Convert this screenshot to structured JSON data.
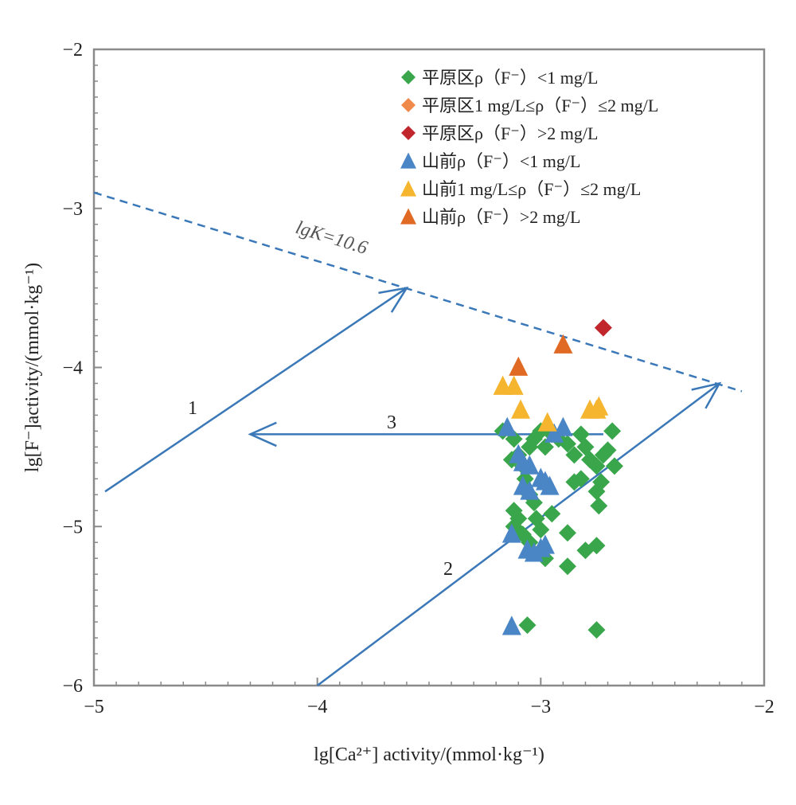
{
  "chart_data": {
    "type": "scatter",
    "xlabel": "lg[Ca²⁺] activity/(mmol·kg⁻¹)",
    "ylabel": "lg[F⁻]activity/(mmol·kg⁻¹)",
    "xlim": [
      -5,
      -2
    ],
    "ylim": [
      -6,
      -2
    ],
    "x_ticks": [
      "−5",
      "−4",
      "−3",
      "−2"
    ],
    "y_ticks": [
      "−2",
      "−3",
      "−4",
      "−5",
      "−6"
    ],
    "grid": false,
    "legend_position": "top-right",
    "series": [
      {
        "name": "平原区ρ（F⁻）<1 mg/L",
        "marker": "diamond",
        "color": "#3aa64c",
        "points": [
          [
            -3.17,
            -4.4
          ],
          [
            -3.12,
            -4.45
          ],
          [
            -3.13,
            -4.58
          ],
          [
            -3.1,
            -4.55
          ],
          [
            -3.08,
            -4.62
          ],
          [
            -3.12,
            -4.9
          ],
          [
            -3.1,
            -4.95
          ],
          [
            -3.12,
            -5.0
          ],
          [
            -3.08,
            -5.05
          ],
          [
            -3.05,
            -4.8
          ],
          [
            -3.03,
            -4.85
          ],
          [
            -3.07,
            -4.7
          ],
          [
            -3.05,
            -4.5
          ],
          [
            -3.03,
            -4.45
          ],
          [
            -3.0,
            -4.4
          ],
          [
            -2.98,
            -4.5
          ],
          [
            -2.95,
            -4.42
          ],
          [
            -2.92,
            -4.45
          ],
          [
            -2.88,
            -4.48
          ],
          [
            -2.85,
            -4.55
          ],
          [
            -2.82,
            -4.42
          ],
          [
            -2.8,
            -4.5
          ],
          [
            -2.78,
            -4.58
          ],
          [
            -2.75,
            -4.62
          ],
          [
            -2.72,
            -4.55
          ],
          [
            -2.7,
            -4.52
          ],
          [
            -2.68,
            -4.4
          ],
          [
            -2.67,
            -4.62
          ],
          [
            -2.73,
            -4.72
          ],
          [
            -2.75,
            -4.78
          ],
          [
            -2.74,
            -4.87
          ],
          [
            -2.82,
            -4.7
          ],
          [
            -2.85,
            -4.72
          ],
          [
            -2.95,
            -4.92
          ],
          [
            -3.02,
            -4.95
          ],
          [
            -3.0,
            -5.02
          ],
          [
            -3.05,
            -5.1
          ],
          [
            -3.0,
            -5.15
          ],
          [
            -2.98,
            -5.2
          ],
          [
            -2.88,
            -5.04
          ],
          [
            -2.8,
            -5.15
          ],
          [
            -2.75,
            -5.12
          ],
          [
            -2.88,
            -5.25
          ],
          [
            -3.06,
            -5.62
          ],
          [
            -2.75,
            -5.65
          ]
        ]
      },
      {
        "name": "平原区1 mg/L≤ρ（F⁻）≤2 mg/L",
        "marker": "diamond",
        "color": "#f08a4b",
        "points": []
      },
      {
        "name": "平原区ρ（F⁻）>2 mg/L",
        "marker": "diamond",
        "color": "#c0262b",
        "points": [
          [
            -2.72,
            -3.75
          ]
        ]
      },
      {
        "name": "山前ρ（F⁻）<1 mg/L",
        "marker": "triangle",
        "color": "#4a86c5",
        "points": [
          [
            -3.15,
            -4.38
          ],
          [
            -3.1,
            -4.55
          ],
          [
            -3.08,
            -4.6
          ],
          [
            -3.05,
            -4.62
          ],
          [
            -3.08,
            -4.75
          ],
          [
            -3.05,
            -4.78
          ],
          [
            -3.0,
            -4.7
          ],
          [
            -2.98,
            -4.72
          ],
          [
            -2.96,
            -4.75
          ],
          [
            -2.94,
            -4.42
          ],
          [
            -2.9,
            -4.38
          ],
          [
            -3.13,
            -5.05
          ],
          [
            -3.06,
            -5.15
          ],
          [
            -3.03,
            -5.17
          ],
          [
            -3.0,
            -5.14
          ],
          [
            -2.98,
            -5.12
          ],
          [
            -3.13,
            -5.63
          ]
        ]
      },
      {
        "name": "山前1 mg/L≤ρ（F⁻）≤2 mg/L",
        "marker": "triangle",
        "color": "#f5b52e",
        "points": [
          [
            -3.17,
            -4.12
          ],
          [
            -3.12,
            -4.12
          ],
          [
            -3.09,
            -4.27
          ],
          [
            -2.97,
            -4.35
          ],
          [
            -2.78,
            -4.27
          ],
          [
            -2.75,
            -4.27
          ],
          [
            -2.74,
            -4.25
          ]
        ]
      },
      {
        "name": "山前ρ（F⁻）>2 mg/L",
        "marker": "triangle",
        "color": "#e06a24",
        "points": [
          [
            -3.1,
            -4.0
          ],
          [
            -2.9,
            -3.86
          ]
        ]
      }
    ],
    "reference_line": {
      "label": "lgK=10.6",
      "from": [
        -5,
        -2.9
      ],
      "to": [
        -2.1,
        -4.15
      ],
      "style": "dashed",
      "color": "#3a78b8"
    },
    "arrows": [
      {
        "label": "1",
        "from": [
          -4.95,
          -4.78
        ],
        "to": [
          -3.6,
          -3.5
        ],
        "color": "#3a78b8"
      },
      {
        "label": "2",
        "from": [
          -4.0,
          -6.0
        ],
        "to": [
          -2.2,
          -4.1
        ],
        "color": "#3a78b8"
      },
      {
        "label": "3",
        "from": [
          -2.72,
          -4.42
        ],
        "to": [
          -4.3,
          -4.42
        ],
        "color": "#3a78b8"
      }
    ]
  }
}
